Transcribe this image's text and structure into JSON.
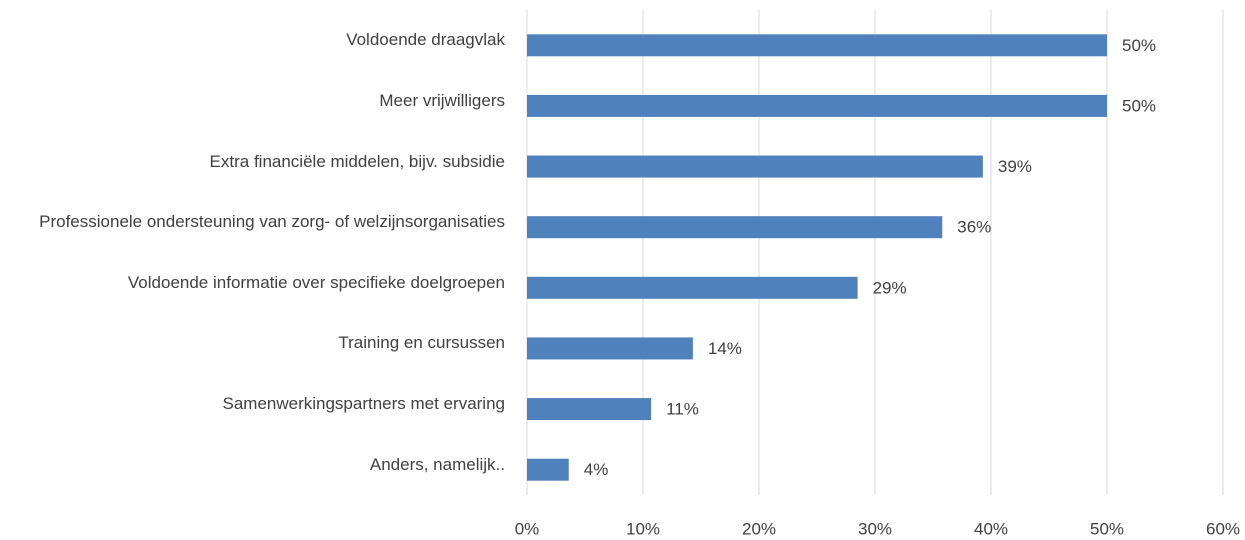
{
  "chart_data": {
    "type": "bar",
    "orientation": "horizontal",
    "categories": [
      "Voldoende draagvlak",
      "Meer vrijwilligers",
      "Extra financiële middelen, bijv. subsidie",
      "Professionele ondersteuning van zorg- of welzijnsorganisaties",
      "Voldoende informatie over specifieke doelgroepen",
      "Training en cursussen",
      "Samenwerkingspartners met ervaring",
      "Anders, namelijk.."
    ],
    "values": [
      50,
      50,
      39.3,
      35.8,
      28.5,
      14.3,
      10.7,
      3.6
    ],
    "value_labels": [
      "50%",
      "50%",
      "39%",
      "36%",
      "29%",
      "14%",
      "11%",
      "4%"
    ],
    "color": "#4f81bd",
    "xlim": [
      0,
      60
    ],
    "xticks": [
      {
        "value": 0,
        "label": "0%"
      },
      {
        "value": 10,
        "label": "10%"
      },
      {
        "value": 20,
        "label": "20%"
      },
      {
        "value": 30,
        "label": "30%"
      },
      {
        "value": 40,
        "label": "40%"
      },
      {
        "value": 50,
        "label": "50%"
      },
      {
        "value": 60,
        "label": "60%"
      }
    ],
    "grid": true
  }
}
